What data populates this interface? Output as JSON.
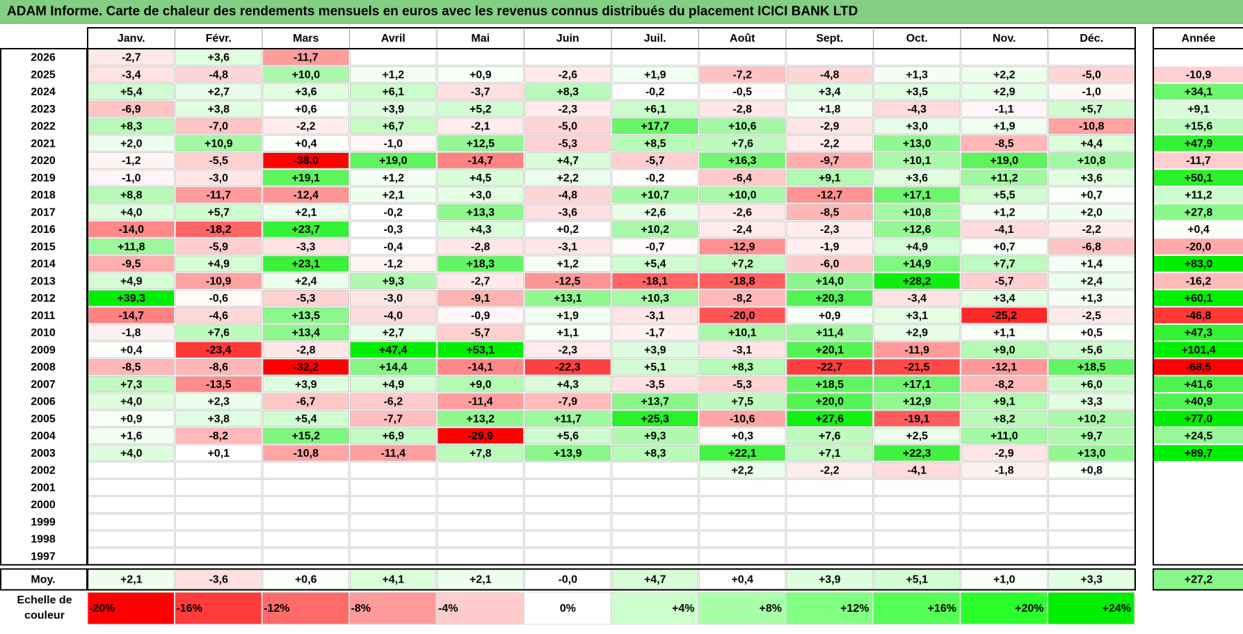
{
  "title": "ADAM Informe. Carte de chaleur des rendements mensuels en euros avec les revenus connus distribués du placement ICICI BANK LTD",
  "chart_data": {
    "type": "heatmap",
    "months": [
      "Janv.",
      "Févr.",
      "Mars",
      "Avril",
      "Mai",
      "Juin",
      "Juil.",
      "Août",
      "Sept.",
      "Oct.",
      "Nov.",
      "Déc."
    ],
    "year_header": "Année",
    "rows": [
      {
        "year": "2026",
        "values": [
          "-2,7",
          "+3,6",
          "-11,7",
          "",
          "",
          "",
          "",
          "",
          "",
          "",
          "",
          ""
        ],
        "annual": ""
      },
      {
        "year": "2025",
        "values": [
          "-3,4",
          "-4,8",
          "+10,0",
          "+1,2",
          "+0,9",
          "-2,6",
          "+1,9",
          "-7,2",
          "-4,8",
          "+1,3",
          "+2,2",
          "-5,0"
        ],
        "annual": "-10,9"
      },
      {
        "year": "2024",
        "values": [
          "+5,4",
          "+2,7",
          "+3,6",
          "+6,1",
          "-3,7",
          "+8,3",
          "-0,2",
          "-0,5",
          "+3,4",
          "+3,5",
          "+2,9",
          "-1,0"
        ],
        "annual": "+34,1"
      },
      {
        "year": "2023",
        "values": [
          "-6,9",
          "+3,8",
          "+0,6",
          "+3,9",
          "+5,2",
          "-2,3",
          "+6,1",
          "-2,8",
          "+1,8",
          "-4,3",
          "-1,1",
          "+5,7"
        ],
        "annual": "+9,1"
      },
      {
        "year": "2022",
        "values": [
          "+8,3",
          "-7,0",
          "-2,2",
          "+6,7",
          "-2,1",
          "-5,0",
          "+17,7",
          "+10,6",
          "-2,9",
          "+3,0",
          "+1,9",
          "-10,8"
        ],
        "annual": "+15,6"
      },
      {
        "year": "2021",
        "values": [
          "+2,0",
          "+10,9",
          "+0,4",
          "-1,0",
          "+12,5",
          "-5,3",
          "+8,5",
          "+7,6",
          "-2,2",
          "+13,0",
          "-8,5",
          "+4,4"
        ],
        "annual": "+47,9"
      },
      {
        "year": "2020",
        "values": [
          "-1,2",
          "-5,5",
          "-38,0",
          "+19,0",
          "-14,7",
          "+4,7",
          "-5,7",
          "+16,3",
          "-9,7",
          "+10,1",
          "+19,0",
          "+10,8"
        ],
        "annual": "-11,7"
      },
      {
        "year": "2019",
        "values": [
          "-1,0",
          "-3,0",
          "+19,1",
          "+1,2",
          "+4,5",
          "+2,2",
          "-0,2",
          "-6,4",
          "+9,1",
          "+3,6",
          "+11,2",
          "+3,6"
        ],
        "annual": "+50,1"
      },
      {
        "year": "2018",
        "values": [
          "+8,8",
          "-11,7",
          "-12,4",
          "+2,1",
          "+3,0",
          "-4,8",
          "+10,7",
          "+10,0",
          "-12,7",
          "+17,1",
          "+5,5",
          "+0,7"
        ],
        "annual": "+11,2"
      },
      {
        "year": "2017",
        "values": [
          "+4,0",
          "+5,7",
          "+2,1",
          "-0,2",
          "+13,3",
          "-3,6",
          "+2,6",
          "-2,6",
          "-8,5",
          "+10,8",
          "+1,2",
          "+2,0"
        ],
        "annual": "+27,8"
      },
      {
        "year": "2016",
        "values": [
          "-14,0",
          "-18,2",
          "+23,7",
          "-0,3",
          "+4,3",
          "+0,2",
          "+10,2",
          "-2,4",
          "-2,3",
          "+12,6",
          "-4,1",
          "-2,2"
        ],
        "annual": "+0,4"
      },
      {
        "year": "2015",
        "values": [
          "+11,8",
          "-5,9",
          "-3,3",
          "-0,4",
          "-2,8",
          "-3,1",
          "-0,7",
          "-12,9",
          "-1,9",
          "+4,9",
          "+0,7",
          "-6,8"
        ],
        "annual": "-20,0"
      },
      {
        "year": "2014",
        "values": [
          "-9,5",
          "+4,9",
          "+23,1",
          "-1,2",
          "+18,3",
          "+1,2",
          "+5,4",
          "+7,2",
          "-6,0",
          "+14,9",
          "+7,7",
          "+1,4"
        ],
        "annual": "+83,0"
      },
      {
        "year": "2013",
        "values": [
          "+4,9",
          "-10,9",
          "+2,4",
          "+9,3",
          "-2,7",
          "-12,5",
          "-18,1",
          "-18,8",
          "+14,0",
          "+28,2",
          "-5,7",
          "+2,4"
        ],
        "annual": "-16,2"
      },
      {
        "year": "2012",
        "values": [
          "+39,3",
          "-0,6",
          "-5,3",
          "-3,0",
          "-9,1",
          "+13,1",
          "+10,3",
          "-8,2",
          "+20,3",
          "-3,4",
          "+3,4",
          "+1,3"
        ],
        "annual": "+60,1"
      },
      {
        "year": "2011",
        "values": [
          "-14,7",
          "-4,6",
          "+13,5",
          "-4,0",
          "-0,9",
          "+1,9",
          "-3,1",
          "-20,0",
          "+0,9",
          "+3,1",
          "-25,2",
          "-2,5"
        ],
        "annual": "-46,8"
      },
      {
        "year": "2010",
        "values": [
          "-1,8",
          "+7,6",
          "+13,4",
          "+2,7",
          "-5,7",
          "+1,1",
          "-1,7",
          "+10,1",
          "+11,4",
          "+2,9",
          "+1,1",
          "+0,5"
        ],
        "annual": "+47,3"
      },
      {
        "year": "2009",
        "values": [
          "+0,4",
          "-23,4",
          "-2,8",
          "+47,4",
          "+53,1",
          "-2,3",
          "+3,9",
          "-3,1",
          "+20,1",
          "-11,9",
          "+9,0",
          "+5,6"
        ],
        "annual": "+101,4"
      },
      {
        "year": "2008",
        "values": [
          "-8,5",
          "-8,6",
          "-32,2",
          "+14,4",
          "-14,1",
          "-22,3",
          "+5,1",
          "+8,3",
          "-22,7",
          "-21,5",
          "-12,1",
          "+18,5"
        ],
        "annual": "-68,5"
      },
      {
        "year": "2007",
        "values": [
          "+7,3",
          "-13,5",
          "+3,9",
          "+4,9",
          "+9,0",
          "+4,3",
          "-3,5",
          "-5,3",
          "+18,5",
          "+17,1",
          "-8,2",
          "+6,0"
        ],
        "annual": "+41,6"
      },
      {
        "year": "2006",
        "values": [
          "+4,0",
          "+2,3",
          "-6,7",
          "-6,2",
          "-11,4",
          "-7,9",
          "+13,7",
          "+7,5",
          "+20,0",
          "+12,9",
          "+9,1",
          "+3,3"
        ],
        "annual": "+40,9"
      },
      {
        "year": "2005",
        "values": [
          "+0,9",
          "+3,8",
          "+5,4",
          "-7,7",
          "+13,2",
          "+11,7",
          "+25,3",
          "-10,6",
          "+27,6",
          "-19,1",
          "+8,2",
          "+10,2"
        ],
        "annual": "+77,0"
      },
      {
        "year": "2004",
        "values": [
          "+1,6",
          "-8,2",
          "+15,2",
          "+6,9",
          "-29,9",
          "+5,6",
          "+9,3",
          "+0,3",
          "+7,6",
          "+2,5",
          "+11,0",
          "+9,7"
        ],
        "annual": "+24,5"
      },
      {
        "year": "2003",
        "values": [
          "+4,0",
          "+0,1",
          "-10,8",
          "-11,4",
          "+7,8",
          "+13,9",
          "+8,3",
          "+22,1",
          "+7,1",
          "+22,3",
          "-2,9",
          "+13,0"
        ],
        "annual": "+89,7"
      },
      {
        "year": "2002",
        "values": [
          "",
          "",
          "",
          "",
          "",
          "",
          "",
          "+2,2",
          "-2,2",
          "-4,1",
          "-1,8",
          "+0,8"
        ],
        "annual": ""
      },
      {
        "year": "2001",
        "values": [
          "",
          "",
          "",
          "",
          "",
          "",
          "",
          "",
          "",
          "",
          "",
          ""
        ],
        "annual": ""
      },
      {
        "year": "2000",
        "values": [
          "",
          "",
          "",
          "",
          "",
          "",
          "",
          "",
          "",
          "",
          "",
          ""
        ],
        "annual": ""
      },
      {
        "year": "1999",
        "values": [
          "",
          "",
          "",
          "",
          "",
          "",
          "",
          "",
          "",
          "",
          "",
          ""
        ],
        "annual": ""
      },
      {
        "year": "1998",
        "values": [
          "",
          "",
          "",
          "",
          "",
          "",
          "",
          "",
          "",
          "",
          "",
          ""
        ],
        "annual": ""
      },
      {
        "year": "1997",
        "values": [
          "",
          "",
          "",
          "",
          "",
          "",
          "",
          "",
          "",
          "",
          "",
          ""
        ],
        "annual": ""
      }
    ],
    "average": {
      "label": "Moy.",
      "values": [
        "+2,1",
        "-3,6",
        "+0,6",
        "+4,1",
        "+2,1",
        "-0,0",
        "+4,7",
        "+0,4",
        "+3,9",
        "+5,1",
        "+1,0",
        "+3,3"
      ],
      "annual": "+27,2"
    },
    "scale": {
      "label_line1": "Echelle de",
      "label_line2": "couleur",
      "stops": [
        "-20%",
        "-16%",
        "-12%",
        "-8%",
        "-4%",
        "0%",
        "+4%",
        "+8%",
        "+12%",
        "+16%",
        "+20%",
        "+24%"
      ],
      "colors": [
        "#ff0000",
        "#ff3b3b",
        "#ff6a6a",
        "#ff9a9a",
        "#ffcccc",
        "#ffffff",
        "#ccffcc",
        "#a8ffa8",
        "#80ff80",
        "#55ff55",
        "#2bff2b",
        "#00ee00"
      ]
    }
  }
}
